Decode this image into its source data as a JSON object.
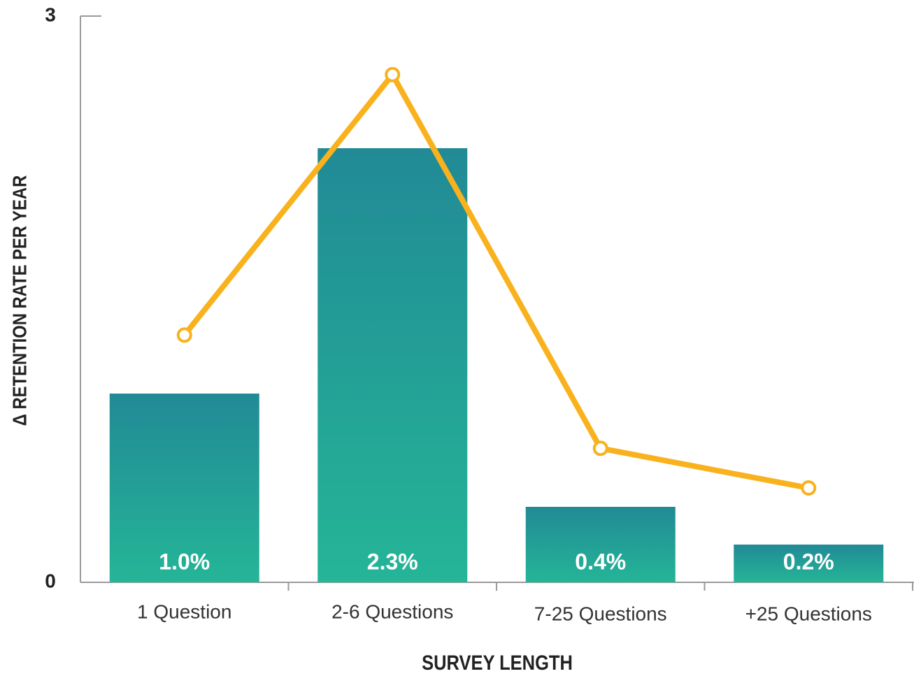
{
  "chart_data": {
    "type": "bar",
    "categories": [
      "1 Question",
      "2-6 Questions",
      "7-25 Questions",
      "+25 Questions"
    ],
    "series": [
      {
        "type": "bar",
        "color": "#24a297",
        "values": [
          1.0,
          2.3,
          0.4,
          0.2
        ],
        "value_labels": [
          "1.0%",
          "2.3%",
          "0.4%",
          "0.2%"
        ]
      },
      {
        "type": "line",
        "color": "#f9b21d",
        "values": [
          1.31,
          2.69,
          0.71,
          0.5
        ]
      }
    ],
    "ylim": [
      0,
      3
    ],
    "yticks": [
      0,
      3
    ],
    "xlabel": "SURVEY LENGTH",
    "ylabel": "Δ RETENTION RATE PER YEAR"
  }
}
